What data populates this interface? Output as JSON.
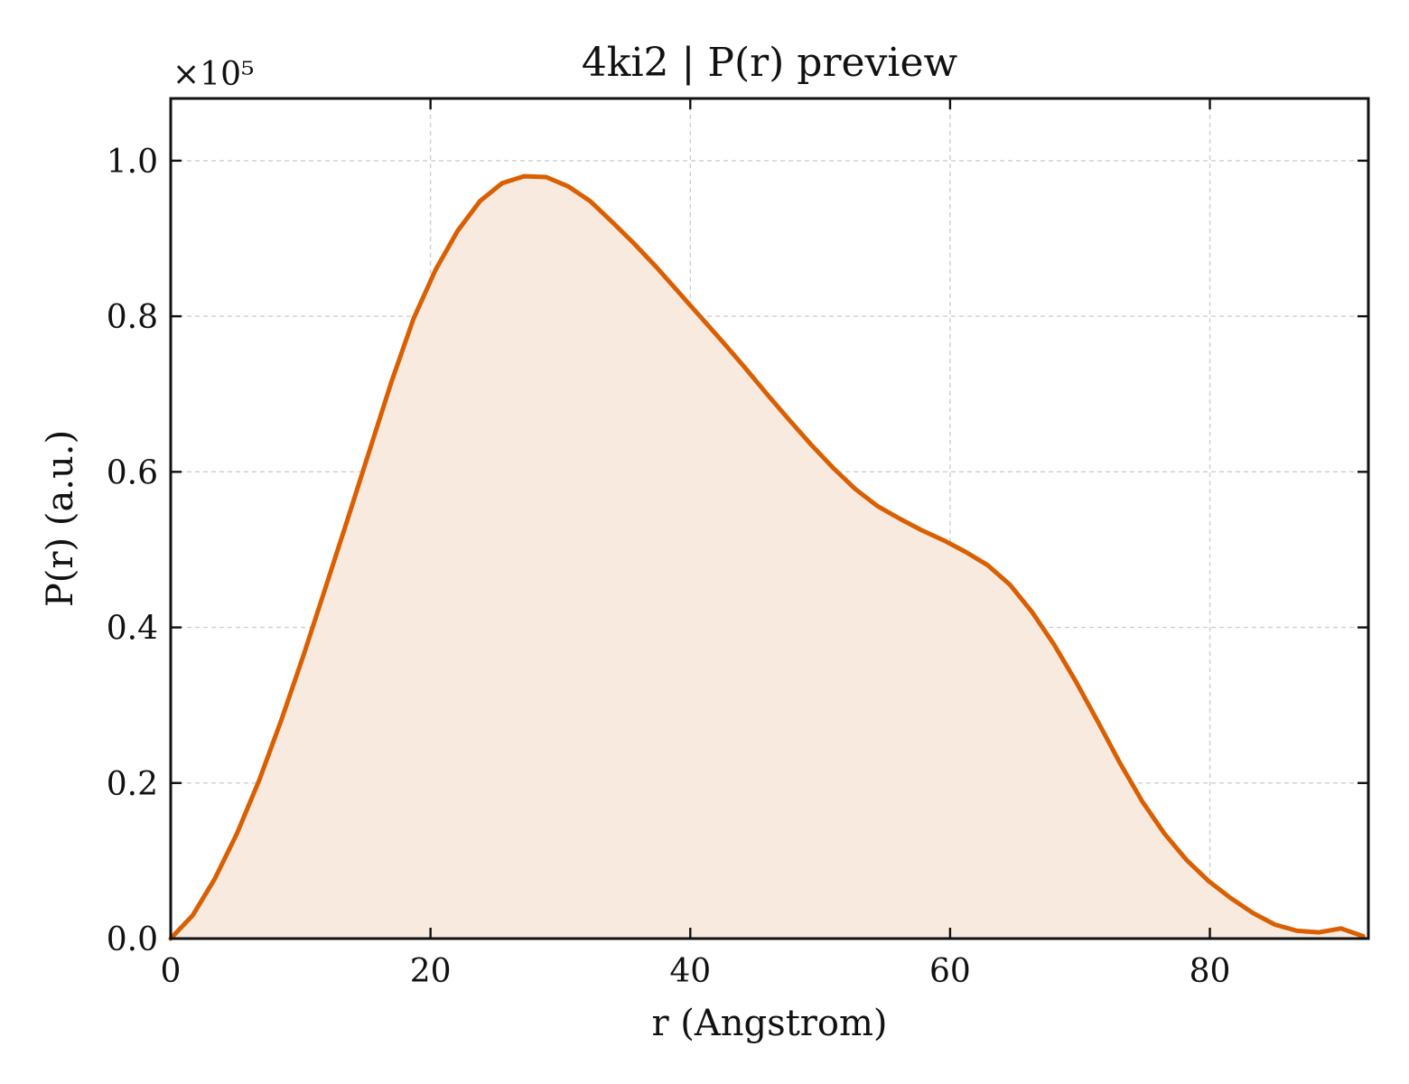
{
  "chart_data": {
    "type": "area",
    "title": "4ki2 | P(r) preview",
    "xlabel": "r (Angstrom)",
    "ylabel": "P(r) (a.u.)",
    "y_multiplier_label": "×10⁵",
    "xlim": [
      0,
      92.2
    ],
    "ylim": [
      0,
      1.08
    ],
    "x_ticks": [
      0,
      20,
      40,
      60,
      80
    ],
    "x_tick_labels": [
      "0",
      "20",
      "40",
      "60",
      "80"
    ],
    "y_ticks": [
      0.0,
      0.2,
      0.4,
      0.6,
      0.8,
      1.0
    ],
    "y_tick_labels": [
      "0.0",
      "0.2",
      "0.4",
      "0.6",
      "0.8",
      "1.0"
    ],
    "grid": true,
    "colors": {
      "line": "#d95f02",
      "fill": "#f9eadf"
    },
    "series": [
      {
        "x": [
          0,
          1.7,
          3.4,
          5.1,
          6.8,
          8.5,
          10.2,
          11.9,
          13.6,
          15.3,
          17.0,
          18.7,
          20.4,
          22.1,
          23.8,
          25.5,
          27.2,
          28.9,
          30.6,
          32.3,
          34.0,
          35.7,
          37.4,
          39.1,
          40.8,
          42.5,
          44.2,
          45.9,
          47.6,
          49.3,
          51.0,
          52.7,
          54.4,
          56.1,
          57.8,
          59.5,
          61.2,
          62.9,
          64.6,
          66.3,
          68.0,
          69.7,
          71.4,
          73.1,
          74.8,
          76.5,
          78.2,
          79.9,
          81.6,
          83.3,
          85.0,
          86.7,
          88.4,
          90.1,
          91.8
        ],
        "values": [
          0.0,
          0.03,
          0.077,
          0.135,
          0.203,
          0.28,
          0.363,
          0.45,
          0.538,
          0.627,
          0.716,
          0.797,
          0.86,
          0.91,
          0.948,
          0.971,
          0.98,
          0.979,
          0.967,
          0.948,
          0.921,
          0.893,
          0.863,
          0.831,
          0.799,
          0.767,
          0.734,
          0.7,
          0.667,
          0.635,
          0.605,
          0.578,
          0.556,
          0.54,
          0.525,
          0.512,
          0.497,
          0.48,
          0.455,
          0.42,
          0.378,
          0.33,
          0.278,
          0.225,
          0.176,
          0.135,
          0.101,
          0.074,
          0.052,
          0.033,
          0.018,
          0.01,
          0.008,
          0.013,
          0.003
        ]
      }
    ]
  }
}
